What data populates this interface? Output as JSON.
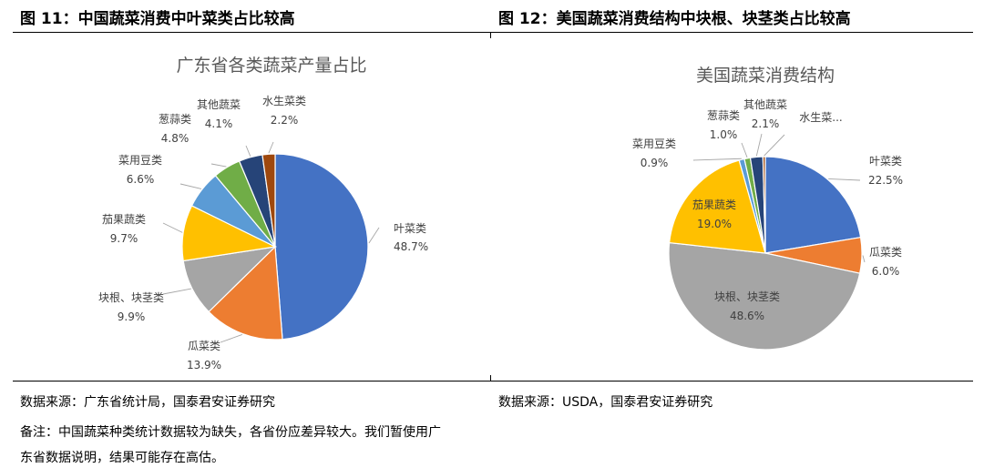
{
  "figures": [
    {
      "caption": "图 11：中国蔬菜消费中叶菜类占比较高",
      "source": "数据来源：广东省统计局，国泰君安证券研究",
      "notes": [
        "备注：中国蔬菜种类统计数据较为缺失，各省份应差异较大。我们暂使用广",
        "东省数据说明，结果可能存在高估。"
      ]
    },
    {
      "caption": "图 12：美国蔬菜消费结构中块根、块茎类占比较高",
      "source": "数据来源：USDA，国泰君安证券研究"
    }
  ],
  "chart_data": [
    {
      "type": "pie",
      "title": "广东省各类蔬菜产量占比",
      "slices": [
        {
          "label": "叶菜类",
          "value": 48.7,
          "display": "48.7%",
          "color": "#4472C4"
        },
        {
          "label": "瓜菜类",
          "value": 13.9,
          "display": "13.9%",
          "color": "#ED7D31"
        },
        {
          "label": "块根、块茎类",
          "value": 9.9,
          "display": "9.9%",
          "color": "#A5A5A5"
        },
        {
          "label": "茄果蔬类",
          "value": 9.7,
          "display": "9.7%",
          "color": "#FFC000"
        },
        {
          "label": "菜用豆类",
          "value": 6.6,
          "display": "6.6%",
          "color": "#5B9BD5"
        },
        {
          "label": "葱蒜类",
          "value": 4.8,
          "display": "4.8%",
          "color": "#70AD47"
        },
        {
          "label": "其他蔬菜",
          "value": 4.1,
          "display": "4.1%",
          "color": "#264478"
        },
        {
          "label": "水生菜类",
          "value": 2.2,
          "display": "2.2%",
          "color": "#9E480E"
        }
      ]
    },
    {
      "type": "pie",
      "title": "美国蔬菜消费结构",
      "slices": [
        {
          "label": "叶菜类",
          "value": 22.5,
          "display": "22.5%",
          "color": "#4472C4"
        },
        {
          "label": "瓜菜类",
          "value": 6.0,
          "display": "6.0%",
          "color": "#ED7D31"
        },
        {
          "label": "块根、块茎类",
          "value": 48.6,
          "display": "48.6%",
          "color": "#A5A5A5"
        },
        {
          "label": "茄果蔬类",
          "value": 19.0,
          "display": "19.0%",
          "color": "#FFC000"
        },
        {
          "label": "菜用豆类",
          "value": 0.9,
          "display": "0.9%",
          "color": "#5B9BD5"
        },
        {
          "label": "葱蒜类",
          "value": 1.0,
          "display": "1.0%",
          "color": "#70AD47"
        },
        {
          "label": "其他蔬菜",
          "value": 2.1,
          "display": "2.1%",
          "color": "#264478"
        },
        {
          "label": "水生菜...",
          "value": 0.4,
          "display": "",
          "color": "#9E480E"
        }
      ]
    }
  ]
}
